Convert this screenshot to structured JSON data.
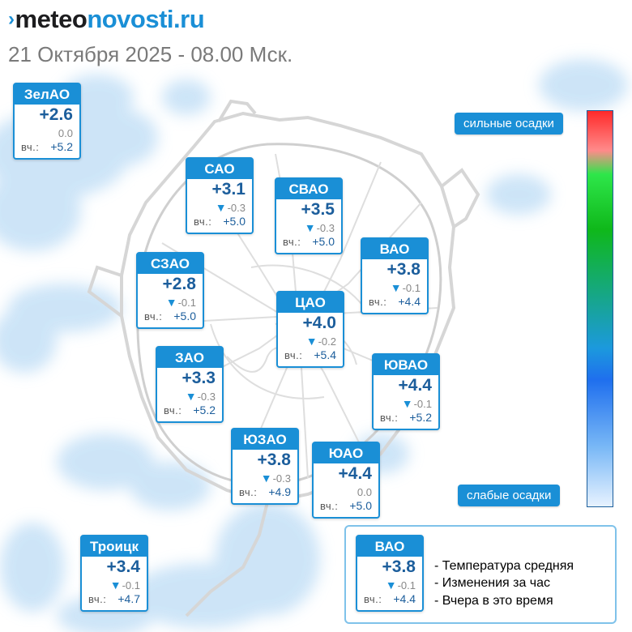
{
  "header": {
    "logo_mark": "›",
    "logo_part1": "meteo",
    "logo_part2": "novosti.ru",
    "date": "21 Октября 2025 - 08.00 Мск."
  },
  "map": {
    "colors": {
      "accent": "#1a8fd6",
      "temp": "#1c5e9c",
      "rain": "#c8e2f7",
      "roads": "#dcdcdc"
    }
  },
  "scale": {
    "top_label": "сильные осадки",
    "bottom_label": "слабые осадки"
  },
  "yesterday_label": "вч.:",
  "districts": [
    {
      "id": "zelao",
      "name": "ЗелАО",
      "temp": "+2.6",
      "change": "0.0",
      "trend": "none",
      "yesterday": "+5.2"
    },
    {
      "id": "sao",
      "name": "САО",
      "temp": "+3.1",
      "change": "-0.3",
      "trend": "down",
      "yesterday": "+5.0"
    },
    {
      "id": "svao",
      "name": "СВАО",
      "temp": "+3.5",
      "change": "-0.3",
      "trend": "down",
      "yesterday": "+5.0"
    },
    {
      "id": "vao",
      "name": "ВАО",
      "temp": "+3.8",
      "change": "-0.1",
      "trend": "down",
      "yesterday": "+4.4"
    },
    {
      "id": "szao",
      "name": "СЗАО",
      "temp": "+2.8",
      "change": "-0.1",
      "trend": "down",
      "yesterday": "+5.0"
    },
    {
      "id": "cao",
      "name": "ЦАО",
      "temp": "+4.0",
      "change": "-0.2",
      "trend": "down",
      "yesterday": "+5.4"
    },
    {
      "id": "zao",
      "name": "ЗАО",
      "temp": "+3.3",
      "change": "-0.3",
      "trend": "down",
      "yesterday": "+5.2"
    },
    {
      "id": "yuvao",
      "name": "ЮВАО",
      "temp": "+4.4",
      "change": "-0.1",
      "trend": "down",
      "yesterday": "+5.2"
    },
    {
      "id": "yuzao",
      "name": "ЮЗАО",
      "temp": "+3.8",
      "change": "-0.3",
      "trend": "down",
      "yesterday": "+4.9"
    },
    {
      "id": "yuao",
      "name": "ЮАО",
      "temp": "+4.4",
      "change": "0.0",
      "trend": "none",
      "yesterday": "+5.0"
    },
    {
      "id": "troitsk",
      "name": "Троицк",
      "temp": "+3.4",
      "change": "-0.1",
      "trend": "down",
      "yesterday": "+4.7"
    }
  ],
  "legend": {
    "sample": {
      "name": "ВАО",
      "temp": "+3.8",
      "change": "-0.1",
      "trend": "down",
      "yesterday": "+4.4"
    },
    "items": [
      "- Температура средняя",
      "- Изменения за час",
      "- Вчера в это время"
    ]
  }
}
